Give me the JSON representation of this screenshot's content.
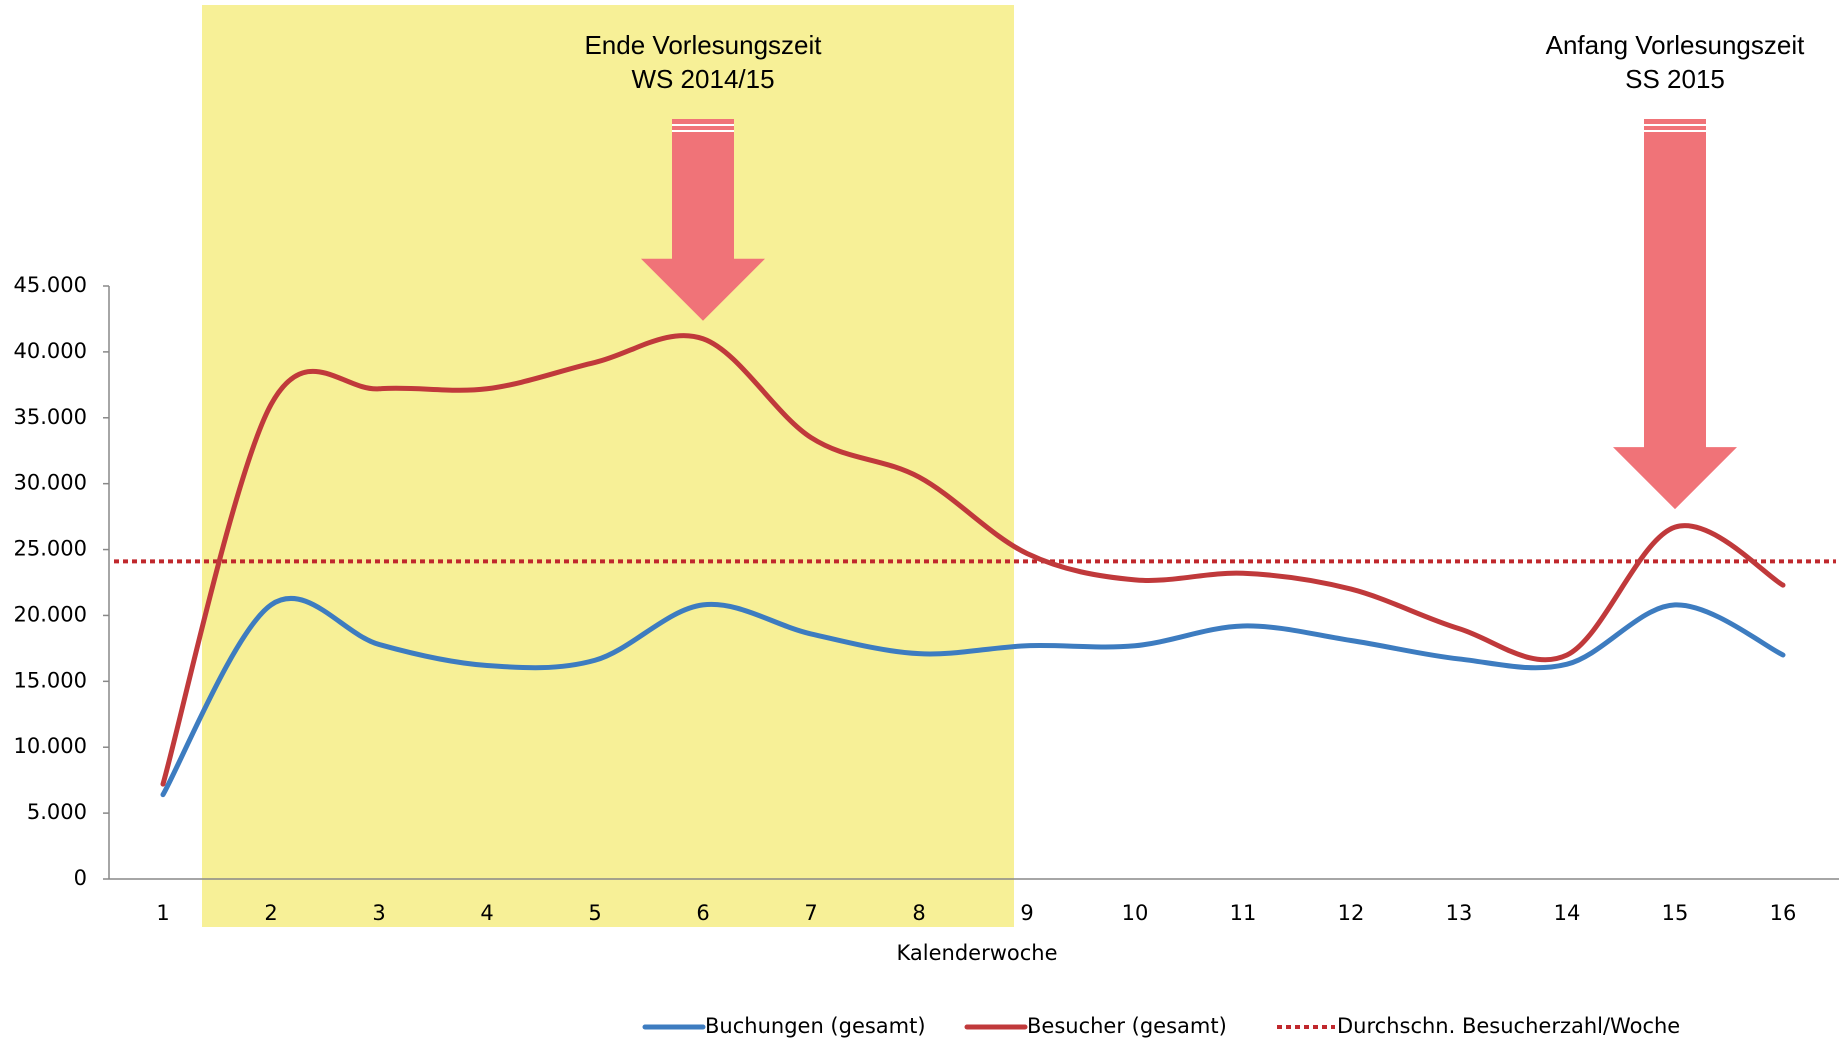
{
  "chart_data": {
    "type": "line",
    "x_label": "Kalenderwoche",
    "categories": [
      "1",
      "2",
      "3",
      "4",
      "5",
      "6",
      "7",
      "8",
      "9",
      "10",
      "11",
      "12",
      "13",
      "14",
      "15",
      "16"
    ],
    "series": [
      {
        "name": "Buchungen (gesamt)",
        "color": "#3d7cc0",
        "values": [
          6400,
          20800,
          17800,
          16200,
          16600,
          20800,
          18600,
          17100,
          17700,
          17700,
          19200,
          18100,
          16700,
          16300,
          20800,
          17000
        ]
      },
      {
        "name": "Besucher (gesamt)",
        "color": "#c0393b",
        "values": [
          7200,
          36000,
          37200,
          37200,
          39200,
          41000,
          33500,
          30500,
          24700,
          22700,
          23200,
          22000,
          19000,
          17000,
          26700,
          22300
        ]
      }
    ],
    "reference_line": {
      "name": "Durchschn. Besucherzahl/Woche",
      "value": 24100,
      "color": "#c0282d"
    },
    "ylim": [
      0,
      45000
    ],
    "yticks": [
      0,
      {
        "value": 5000,
        "label": "5.000"
      },
      {
        "value": 10000,
        "label": "10.000"
      },
      {
        "value": 15000,
        "label": "15.000"
      },
      {
        "value": 20000,
        "label": "20.000"
      },
      {
        "value": 25000,
        "label": "25.000"
      },
      {
        "value": 30000,
        "label": "30.000"
      },
      {
        "value": 35000,
        "label": "35.000"
      },
      {
        "value": 40000,
        "label": "40.000"
      },
      {
        "value": 45000,
        "label": "45.000"
      }
    ],
    "annotations": [
      {
        "lines": [
          "Ende Vorlesungszeit",
          "WS 2014/15"
        ],
        "category": 5
      },
      {
        "lines": [
          "Anfang Vorlesungszeit",
          "SS 2015"
        ],
        "category": 14
      }
    ],
    "grid": false
  }
}
